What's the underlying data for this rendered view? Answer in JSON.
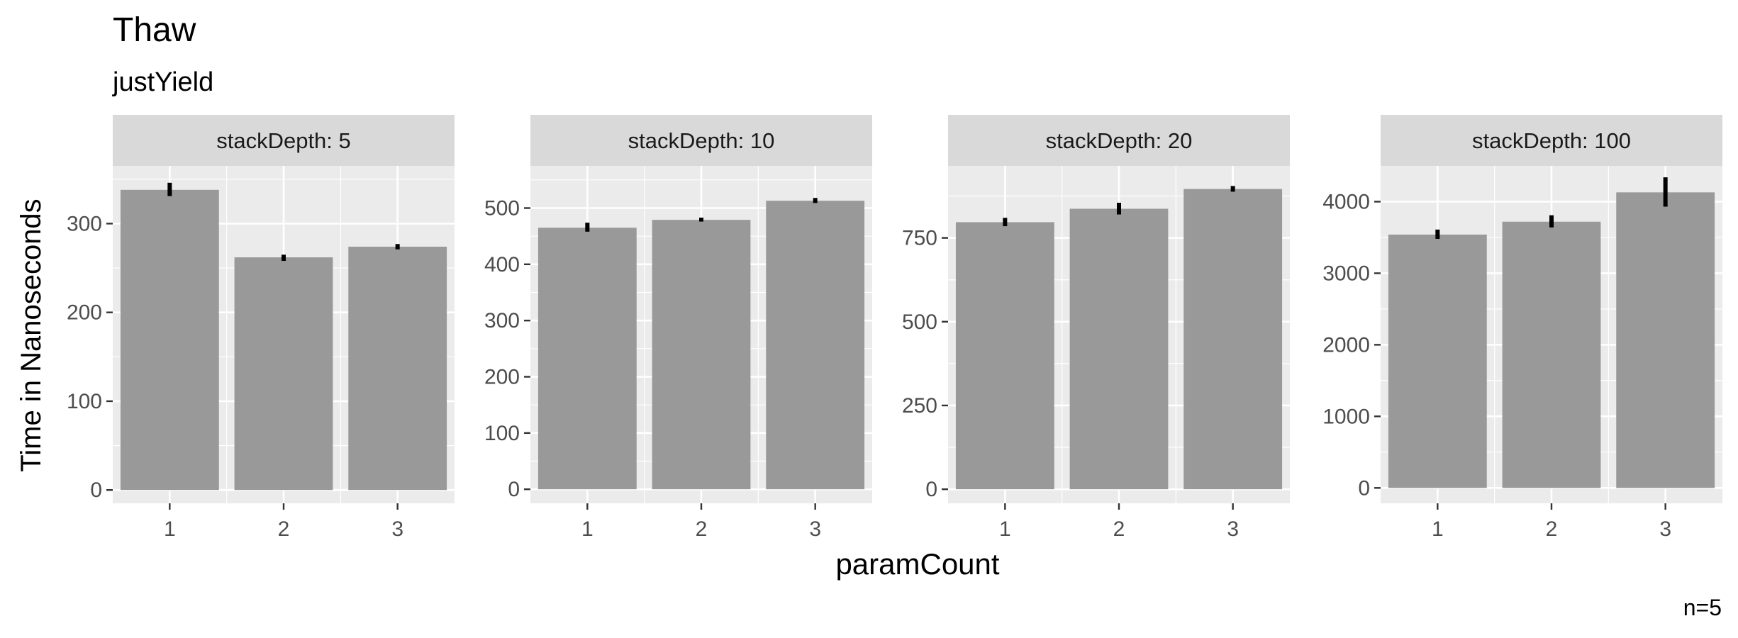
{
  "chart_data": {
    "type": "bar",
    "title": "Thaw",
    "subtitle": "justYield",
    "xlabel": "paramCount",
    "ylabel": "Time in Nanoseconds",
    "caption": "n=5",
    "grid": true,
    "legend": "none",
    "colors": {
      "bar": "#999999",
      "panel_bg": "#ebebeb",
      "strip_bg": "#d9d9d9",
      "grid": "#ffffff",
      "errorbar": "#000000"
    },
    "categories": [
      "1",
      "2",
      "3"
    ],
    "panels": [
      {
        "strip": "stackDepth: 5",
        "ylim": [
          -15,
          365
        ],
        "yticks": [
          0,
          100,
          200,
          300
        ],
        "ytick_labels": [
          "0",
          "100",
          "200",
          "300"
        ],
        "values": [
          338,
          262,
          274
        ],
        "err_low": [
          331,
          258,
          271
        ],
        "err_high": [
          346,
          265,
          277
        ]
      },
      {
        "strip": "stackDepth: 10",
        "ylim": [
          -25,
          575
        ],
        "yticks": [
          0,
          100,
          200,
          300,
          400,
          500
        ],
        "ytick_labels": [
          "0",
          "100",
          "200",
          "300",
          "400",
          "500"
        ],
        "values": [
          465,
          479,
          513
        ],
        "err_low": [
          458,
          476,
          509
        ],
        "err_high": [
          474,
          483,
          518
        ]
      },
      {
        "strip": "stackDepth: 20",
        "ylim": [
          -42,
          965
        ],
        "yticks": [
          0,
          250,
          500,
          750
        ],
        "ytick_labels": [
          "0",
          "250",
          "500",
          "750"
        ],
        "values": [
          797,
          837,
          896
        ],
        "err_low": [
          785,
          820,
          888
        ],
        "err_high": [
          810,
          855,
          905
        ]
      },
      {
        "strip": "stackDepth: 100",
        "ylim": [
          -215,
          4500
        ],
        "yticks": [
          0,
          1000,
          2000,
          3000,
          4000
        ],
        "ytick_labels": [
          "0",
          "1000",
          "2000",
          "3000",
          "4000"
        ],
        "values": [
          3540,
          3720,
          4130
        ],
        "err_low": [
          3480,
          3640,
          3930
        ],
        "err_high": [
          3610,
          3810,
          4340
        ]
      }
    ]
  }
}
